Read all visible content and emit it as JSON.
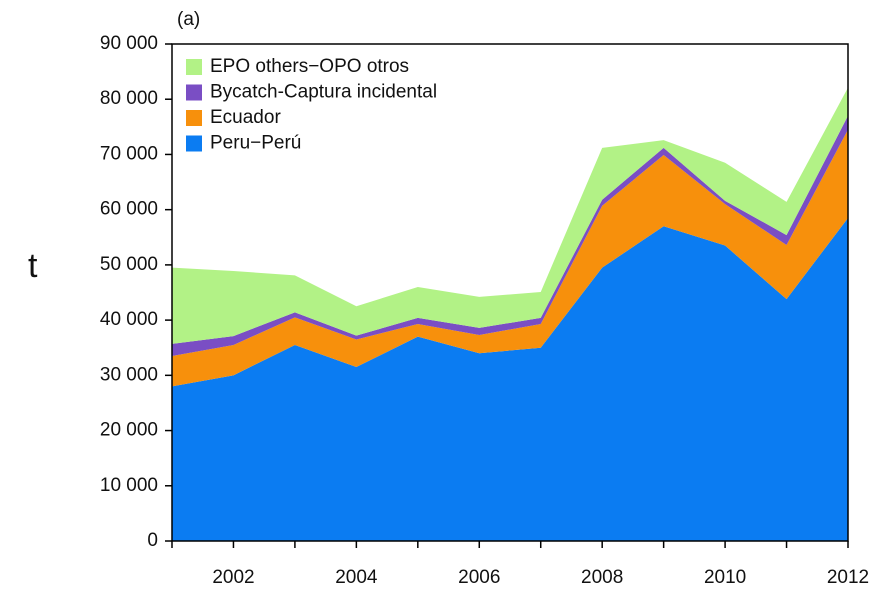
{
  "chart_data": {
    "type": "stacked_area",
    "title": "(a)",
    "y_label": "t",
    "x": [
      2001,
      2002,
      2003,
      2004,
      2005,
      2006,
      2007,
      2008,
      2009,
      2010,
      2011,
      2012
    ],
    "series": [
      {
        "name": "Peru−Perú",
        "color": "#0b7cf2",
        "values": [
          28000,
          30000,
          35500,
          31500,
          37000,
          34000,
          35000,
          49500,
          57000,
          53500,
          43800,
          58500
        ]
      },
      {
        "name": "Ecuador",
        "color": "#f7900c",
        "values": [
          5500,
          5500,
          5000,
          5000,
          2300,
          3300,
          4300,
          11200,
          12900,
          7500,
          9800,
          16000
        ]
      },
      {
        "name": "Bycatch-Captura incidental",
        "color": "#7a4ec4",
        "values": [
          2200,
          1600,
          900,
          700,
          1100,
          1300,
          1100,
          1100,
          1300,
          600,
          1800,
          2500
        ]
      },
      {
        "name": "EPO others−OPO otros",
        "color": "#b2f286",
        "values": [
          13800,
          11800,
          6700,
          5300,
          5600,
          5600,
          4700,
          9400,
          1400,
          6900,
          6000,
          5100
        ]
      }
    ],
    "xlim": [
      2001,
      2012
    ],
    "xticks": [
      2002,
      2004,
      2006,
      2008,
      2010,
      2012
    ],
    "xminorticks": [
      2001,
      2003,
      2005,
      2007,
      2009,
      2011
    ],
    "ylim": [
      0,
      90000
    ],
    "yticks": [
      0,
      {
        "value": 10000,
        "label": "10 000"
      },
      {
        "value": 20000,
        "label": "20 000"
      },
      {
        "value": 30000,
        "label": "30 000"
      },
      {
        "value": 40000,
        "label": "40 000"
      },
      {
        "value": 50000,
        "label": "50 000"
      },
      {
        "value": 60000,
        "label": "60 000"
      },
      {
        "value": 70000,
        "label": "70 000"
      },
      {
        "value": 80000,
        "label": "80 000"
      },
      {
        "value": 90000,
        "label": "90 000"
      }
    ],
    "legend": "upper left"
  }
}
